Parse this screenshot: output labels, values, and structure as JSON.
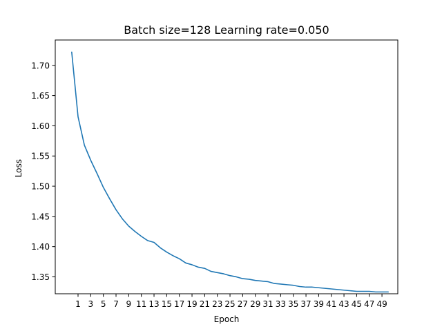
{
  "chart_data": {
    "type": "line",
    "title": "Batch size=128 Learning rate=0.050",
    "xlabel": "Epoch",
    "ylabel": "Loss",
    "xlim": [
      -2.6,
      51.5
    ],
    "ylim": [
      1.322,
      1.742
    ],
    "xticks": [
      1,
      3,
      5,
      7,
      9,
      11,
      13,
      15,
      17,
      19,
      21,
      23,
      25,
      27,
      29,
      31,
      33,
      35,
      37,
      39,
      41,
      43,
      45,
      47,
      49
    ],
    "yticks": [
      "1.35",
      "1.40",
      "1.45",
      "1.50",
      "1.55",
      "1.60",
      "1.65",
      "1.70"
    ],
    "grid": false,
    "colors": {
      "line": "#1f77b4"
    },
    "series": [
      {
        "x": [
          0,
          1,
          2,
          3,
          4,
          5,
          6,
          7,
          8,
          9,
          10,
          11,
          12,
          13,
          14,
          15,
          16,
          17,
          18,
          19,
          20,
          21,
          22,
          23,
          24,
          25,
          26,
          27,
          28,
          29,
          30,
          31,
          32,
          33,
          34,
          35,
          36,
          37,
          38,
          39,
          40,
          41,
          42,
          43,
          44,
          45,
          46,
          47,
          48,
          49,
          50
        ],
        "values": [
          1.722,
          1.615,
          1.568,
          1.543,
          1.521,
          1.498,
          1.479,
          1.461,
          1.446,
          1.434,
          1.425,
          1.417,
          1.41,
          1.407,
          1.398,
          1.391,
          1.385,
          1.38,
          1.373,
          1.37,
          1.366,
          1.364,
          1.359,
          1.357,
          1.355,
          1.352,
          1.35,
          1.347,
          1.346,
          1.344,
          1.343,
          1.342,
          1.339,
          1.338,
          1.337,
          1.336,
          1.334,
          1.333,
          1.333,
          1.332,
          1.331,
          1.33,
          1.329,
          1.328,
          1.327,
          1.326,
          1.326,
          1.326,
          1.325,
          1.325,
          1.325
        ]
      }
    ]
  }
}
